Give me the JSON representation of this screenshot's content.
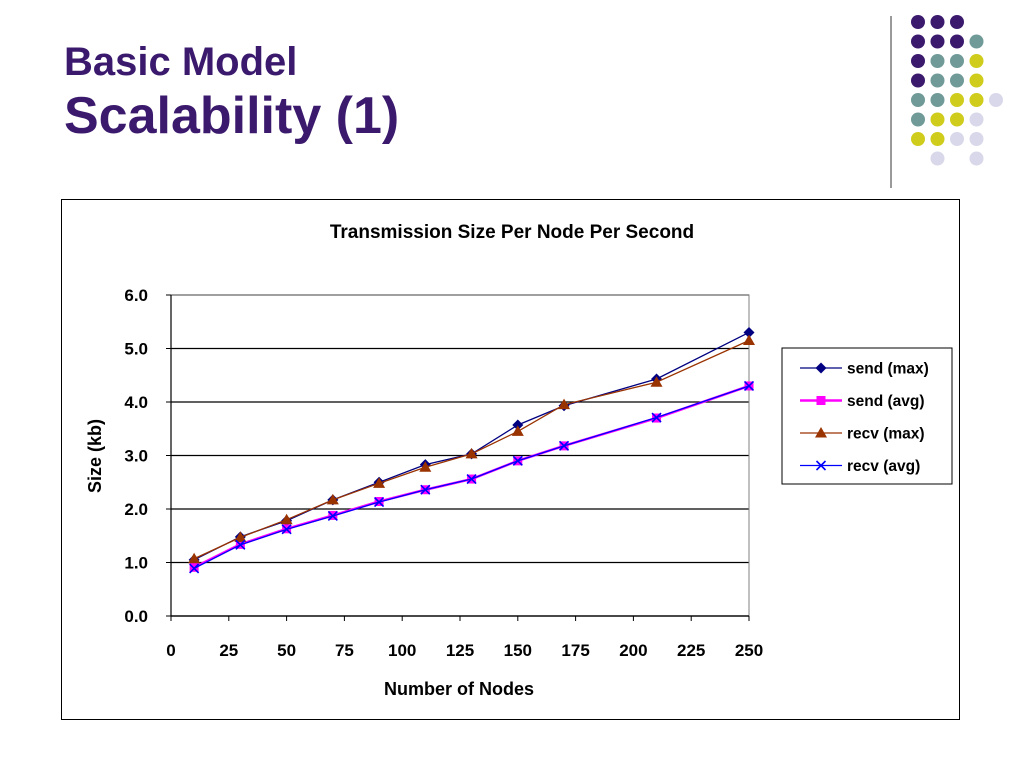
{
  "slide": {
    "title_line1": "Basic Model",
    "title_line2": "Scalability (1)"
  },
  "colors": {
    "title": "#3b1a6e",
    "dot_purple": "#3b1a6e",
    "dot_teal": "#6f9a98",
    "dot_yellow": "#cfcc1c",
    "dot_lavender": "#d8d8ea"
  },
  "chart_data": {
    "type": "line",
    "title": "Transmission Size Per Node Per Second",
    "xlabel": "Number of Nodes",
    "ylabel": "Size (kb)",
    "xlim": [
      0,
      250
    ],
    "ylim": [
      0,
      6
    ],
    "x_ticks": [
      "0",
      "25",
      "50",
      "75",
      "100",
      "125",
      "150",
      "175",
      "200",
      "225",
      "250"
    ],
    "y_ticks": [
      "0.0",
      "1.0",
      "2.0",
      "3.0",
      "4.0",
      "5.0",
      "6.0"
    ],
    "grid": "horizontal",
    "legend_position": "right",
    "x": [
      10,
      30,
      50,
      70,
      90,
      110,
      130,
      150,
      170,
      210,
      250
    ],
    "series": [
      {
        "name": "send (max)",
        "color": "#000080",
        "marker": "diamond",
        "values": [
          1.05,
          1.48,
          1.78,
          2.17,
          2.5,
          2.83,
          3.03,
          3.57,
          3.93,
          4.43,
          5.3
        ]
      },
      {
        "name": "send (avg)",
        "color": "#ff00ff",
        "marker": "square",
        "values": [
          0.91,
          1.34,
          1.63,
          1.88,
          2.14,
          2.36,
          2.56,
          2.9,
          3.18,
          3.7,
          4.3
        ]
      },
      {
        "name": "recv (max)",
        "color": "#993300",
        "marker": "triangle",
        "values": [
          1.07,
          1.47,
          1.8,
          2.17,
          2.48,
          2.78,
          3.03,
          3.45,
          3.95,
          4.37,
          5.15
        ]
      },
      {
        "name": "recv (avg)",
        "color": "#0000ff",
        "marker": "x",
        "values": [
          0.89,
          1.33,
          1.62,
          1.87,
          2.13,
          2.36,
          2.56,
          2.9,
          3.18,
          3.71,
          4.3
        ]
      }
    ]
  }
}
